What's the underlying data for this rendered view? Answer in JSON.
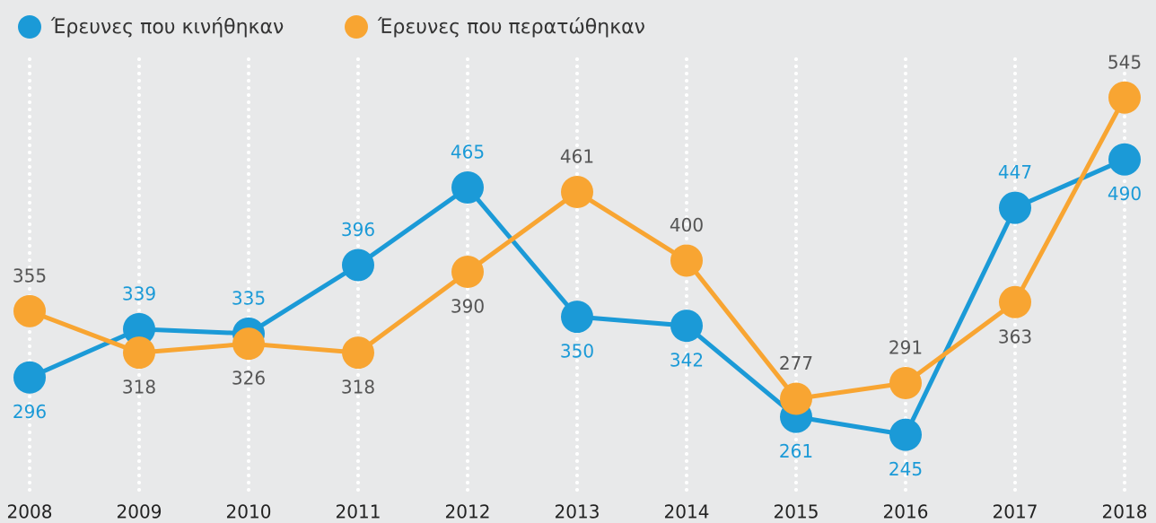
{
  "chart_data": {
    "type": "line",
    "categories": [
      "2008",
      "2009",
      "2010",
      "2011",
      "2012",
      "2013",
      "2014",
      "2015",
      "2016",
      "2017",
      "2018"
    ],
    "series": [
      {
        "name": "Έρευνες που κινήθηκαν",
        "color": "#1b9ad7",
        "values": [
          296,
          339,
          335,
          396,
          465,
          350,
          342,
          261,
          245,
          447,
          490
        ]
      },
      {
        "name": "Έρευνες που περατώθηκαν",
        "color": "#f8a532",
        "values": [
          355,
          318,
          326,
          318,
          390,
          461,
          400,
          277,
          291,
          363,
          545
        ]
      }
    ],
    "ylim": [
      200,
      560
    ],
    "legend": "top-left"
  }
}
